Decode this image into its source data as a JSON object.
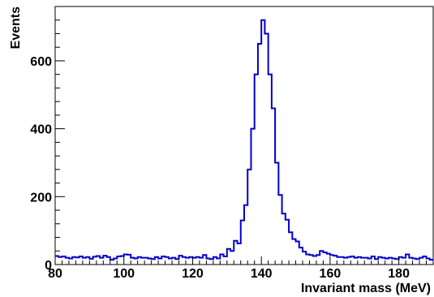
{
  "chart_data": {
    "type": "histogram",
    "title": "",
    "xlabel": "Invariant mass (MeV)",
    "ylabel": "Events",
    "xlim": [
      80,
      190
    ],
    "ylim": [
      0,
      760
    ],
    "grid": false,
    "legend": "none",
    "bin_width": 1,
    "x_ticks": [
      80,
      100,
      120,
      140,
      160,
      180
    ],
    "y_ticks": [
      0,
      200,
      400,
      600
    ],
    "series": [
      {
        "color": "#0000cc",
        "bin_start": 80,
        "values": [
          25,
          22,
          24,
          20,
          18,
          22,
          21,
          24,
          20,
          22,
          17,
          23,
          25,
          20,
          26,
          22,
          14,
          18,
          24,
          25,
          30,
          29,
          20,
          18,
          22,
          20,
          20,
          18,
          16,
          22,
          18,
          24,
          22,
          18,
          20,
          16,
          26,
          22,
          20,
          22,
          20,
          22,
          20,
          28,
          18,
          16,
          22,
          18,
          30,
          24,
          46,
          40,
          70,
          62,
          130,
          175,
          280,
          400,
          560,
          650,
          720,
          680,
          560,
          460,
          300,
          205,
          150,
          132,
          95,
          75,
          68,
          50,
          38,
          30,
          28,
          25,
          28,
          40,
          36,
          32,
          28,
          26,
          22,
          22,
          20,
          22,
          24,
          20,
          22,
          20,
          20,
          18,
          24,
          16,
          22,
          20,
          18,
          20,
          18,
          16,
          22,
          20,
          30,
          20,
          18,
          16,
          20,
          24,
          18,
          14
        ]
      }
    ]
  }
}
